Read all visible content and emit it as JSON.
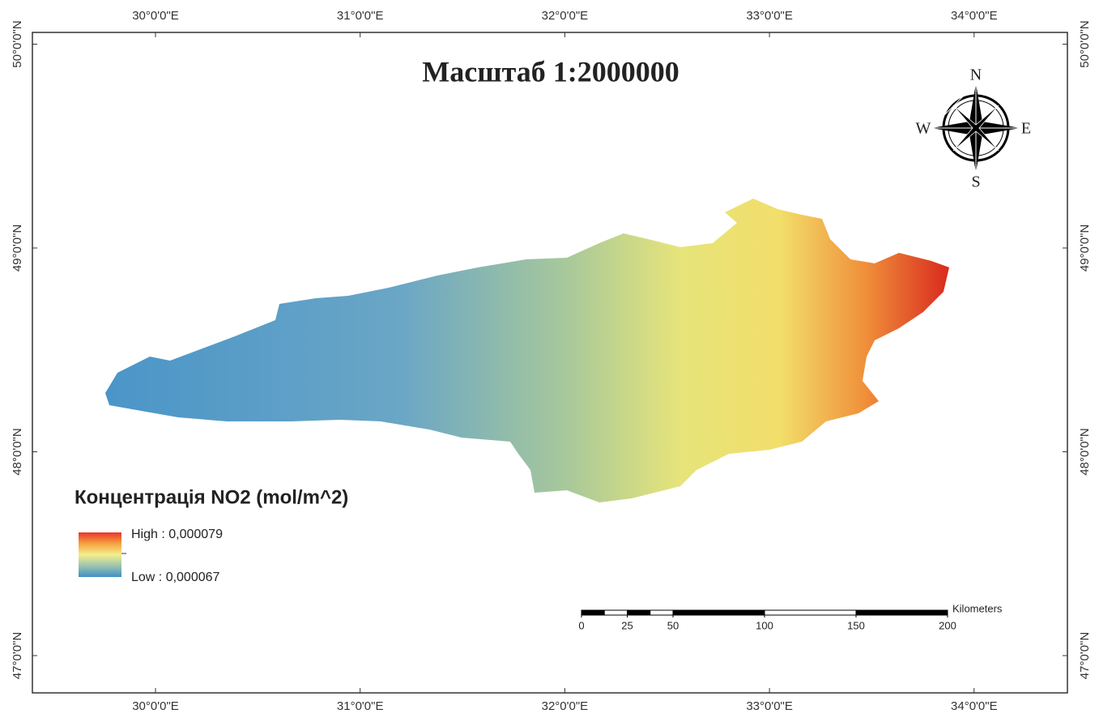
{
  "title": "Масштаб 1:2000000",
  "longitudes": [
    {
      "value": 30,
      "label": "30°0'0\"E"
    },
    {
      "value": 31,
      "label": "31°0'0\"E"
    },
    {
      "value": 32,
      "label": "32°0'0\"E"
    },
    {
      "value": 33,
      "label": "33°0'0\"E"
    },
    {
      "value": 34,
      "label": "34°0'0\"E"
    }
  ],
  "latitudes": [
    {
      "value": 50,
      "label": "50°0'0\"N"
    },
    {
      "value": 49,
      "label": "49°0'0\"N"
    },
    {
      "value": 48,
      "label": "48°0'0\"N"
    },
    {
      "value": 47,
      "label": "47°0'0\"N"
    }
  ],
  "legend": {
    "title": "Концентрація NO2 (mol/m^2)",
    "high": "High : 0,000079",
    "low": "Low : 0,000067"
  },
  "scale_bar": {
    "unit": "Kilometers",
    "ticks": [
      0,
      25,
      50,
      100,
      150,
      200
    ]
  },
  "compass": {
    "north": "N",
    "south": "S",
    "east": "E",
    "west": "W"
  }
}
